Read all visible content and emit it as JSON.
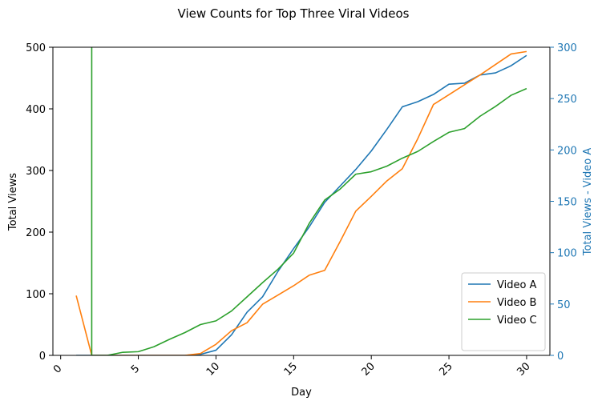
{
  "chart_data": {
    "type": "line",
    "title": "View Counts for Top Three Viral Videos",
    "xlabel": "Day",
    "ylabel": "Total Views",
    "ylabel_right": "Total Views - Video A",
    "xlim": [
      -0.5,
      31.5
    ],
    "ylim": [
      0,
      500
    ],
    "ylim_right": [
      0,
      300
    ],
    "x_ticks": [
      0,
      5,
      10,
      15,
      20,
      25,
      30
    ],
    "y_ticks": [
      0,
      100,
      200,
      300,
      400,
      500
    ],
    "y_ticks_right": [
      0,
      50,
      100,
      150,
      200,
      250,
      300
    ],
    "legend_position": "lower-right",
    "grid": false,
    "x": [
      1,
      2,
      3,
      4,
      5,
      6,
      7,
      8,
      9,
      10,
      11,
      12,
      13,
      14,
      15,
      16,
      17,
      18,
      19,
      20,
      21,
      22,
      23,
      24,
      25,
      26,
      27,
      28,
      29,
      30
    ],
    "series": [
      {
        "name": "Video A",
        "color": "#1f77b4",
        "axis": "right",
        "values": [
          0,
          0,
          0,
          0,
          0,
          0,
          0,
          0,
          1,
          5,
          20,
          42,
          57,
          82,
          104,
          125,
          149,
          165,
          181,
          199,
          220,
          242,
          247,
          254,
          264,
          265,
          273,
          275,
          282,
          292
        ]
      },
      {
        "name": "Video B",
        "color": "#ff7f0e",
        "axis": "left",
        "values": [
          97,
          0,
          0,
          0,
          0,
          0,
          0,
          0,
          3,
          18,
          40,
          53,
          83,
          98,
          113,
          130,
          138,
          185,
          234,
          258,
          283,
          303,
          352,
          407,
          423,
          439,
          455,
          472,
          489,
          493
        ]
      },
      {
        "name": "Video C",
        "color": "#2ca02c",
        "axis": "left",
        "x": [
          2,
          2,
          3,
          4,
          5,
          6,
          7,
          8,
          9,
          10,
          11,
          12,
          13,
          14,
          15,
          16,
          17,
          18,
          19,
          20,
          21,
          22,
          23,
          24,
          25,
          26,
          27,
          28,
          29,
          30
        ],
        "values": [
          530,
          0,
          0,
          5,
          6,
          14,
          26,
          37,
          50,
          56,
          72,
          95,
          118,
          140,
          166,
          214,
          252,
          270,
          294,
          298,
          307,
          320,
          331,
          347,
          362,
          368,
          388,
          404,
          422,
          433
        ]
      }
    ]
  }
}
